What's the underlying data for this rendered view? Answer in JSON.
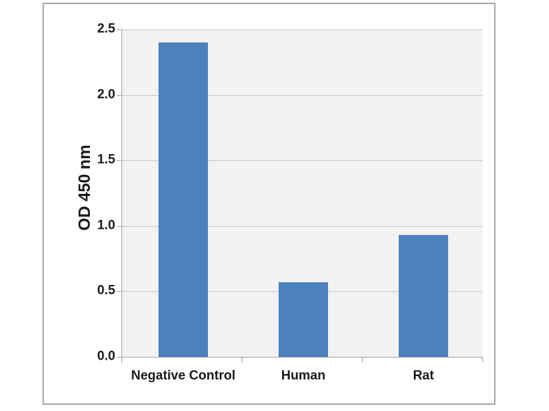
{
  "chart_data": {
    "type": "bar",
    "categories": [
      "Negative Control",
      "Human",
      "Rat"
    ],
    "values": [
      2.4,
      0.57,
      0.93
    ],
    "title": "",
    "xlabel": "",
    "ylabel": "OD 450 nm",
    "ylim": [
      0,
      2.5
    ],
    "yticks": [
      0.0,
      0.5,
      1.0,
      1.5,
      2.0,
      2.5
    ],
    "ytick_labels": [
      "0.0",
      "0.5",
      "1.0",
      "1.5",
      "2.0",
      "2.5"
    ],
    "grid": true,
    "legend_position": "none",
    "colors": {
      "bar": "#4d81be",
      "plot_background": "#f2f2f2",
      "gridline": "#c9c9c9",
      "axis": "#a0a0a0",
      "frame_border": "#a6a6a6",
      "text": "#1a1a1a"
    }
  }
}
